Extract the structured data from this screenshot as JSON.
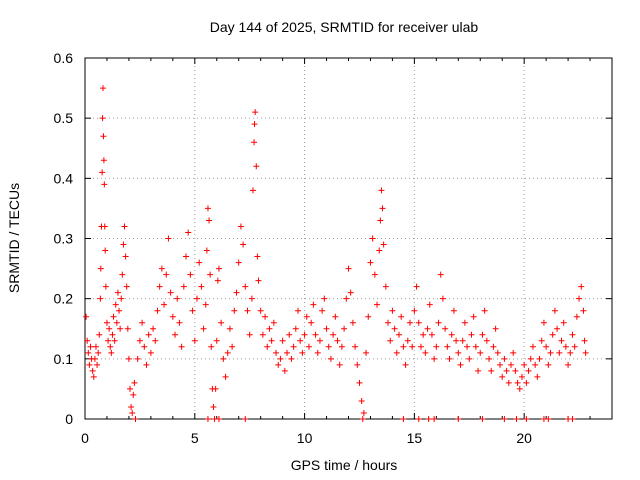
{
  "chart_data": {
    "type": "scatter",
    "title": "Day 144 of 2025, SRMTID for receiver ulab",
    "xlabel": "GPS time / hours",
    "ylabel": "SRMTID / TECUs",
    "xlim": [
      0,
      24
    ],
    "ylim": [
      0,
      0.6
    ],
    "x_ticks": [
      0,
      5,
      10,
      15,
      20
    ],
    "x_tick_labels": [
      "0",
      "5",
      "10",
      "15",
      "20"
    ],
    "y_ticks": [
      0,
      0.1,
      0.2,
      0.3,
      0.4,
      0.5,
      0.6
    ],
    "y_tick_labels": [
      "0",
      "0.1",
      "0.2",
      "0.3",
      "0.4",
      "0.5",
      "0.6"
    ],
    "grid": true,
    "marker": "+",
    "series": [
      {
        "name": "SRMTID",
        "color": "#ff0000",
        "points": [
          [
            0.05,
            0.17
          ],
          [
            0.1,
            0.13
          ],
          [
            0.15,
            0.11
          ],
          [
            0.2,
            0.09
          ],
          [
            0.25,
            0.12
          ],
          [
            0.3,
            0.1
          ],
          [
            0.35,
            0.08
          ],
          [
            0.4,
            0.07
          ],
          [
            0.45,
            0.1
          ],
          [
            0.5,
            0.12
          ],
          [
            0.55,
            0.09
          ],
          [
            0.6,
            0.11
          ],
          [
            0.65,
            0.14
          ],
          [
            0.7,
            0.2
          ],
          [
            0.72,
            0.25
          ],
          [
            0.75,
            0.32
          ],
          [
            0.78,
            0.41
          ],
          [
            0.8,
            0.5
          ],
          [
            0.82,
            0.55
          ],
          [
            0.84,
            0.47
          ],
          [
            0.86,
            0.43
          ],
          [
            0.88,
            0.39
          ],
          [
            0.9,
            0.32
          ],
          [
            0.92,
            0.28
          ],
          [
            0.95,
            0.22
          ],
          [
            1.0,
            0.16
          ],
          [
            1.05,
            0.13
          ],
          [
            1.1,
            0.15
          ],
          [
            1.15,
            0.12
          ],
          [
            1.2,
            0.11
          ],
          [
            1.25,
            0.14
          ],
          [
            1.3,
            0.17
          ],
          [
            1.35,
            0.13
          ],
          [
            1.4,
            0.19
          ],
          [
            1.45,
            0.16
          ],
          [
            1.5,
            0.21
          ],
          [
            1.55,
            0.18
          ],
          [
            1.6,
            0.15
          ],
          [
            1.65,
            0.2
          ],
          [
            1.7,
            0.24
          ],
          [
            1.75,
            0.29
          ],
          [
            1.8,
            0.32
          ],
          [
            1.85,
            0.27
          ],
          [
            1.9,
            0.22
          ],
          [
            1.95,
            0.15
          ],
          [
            2.0,
            0.1
          ],
          [
            2.05,
            0.05
          ],
          [
            2.1,
            0.02
          ],
          [
            2.15,
            0.01
          ],
          [
            2.2,
            0.04
          ],
          [
            2.25,
            0.06
          ],
          [
            2.3,
            0.0
          ],
          [
            2.4,
            0.1
          ],
          [
            2.5,
            0.13
          ],
          [
            2.6,
            0.16
          ],
          [
            2.7,
            0.12
          ],
          [
            2.8,
            0.09
          ],
          [
            2.9,
            0.14
          ],
          [
            3.0,
            0.11
          ],
          [
            3.1,
            0.15
          ],
          [
            3.2,
            0.13
          ],
          [
            3.3,
            0.18
          ],
          [
            3.4,
            0.22
          ],
          [
            3.5,
            0.25
          ],
          [
            3.6,
            0.19
          ],
          [
            3.7,
            0.24
          ],
          [
            3.8,
            0.3
          ],
          [
            3.9,
            0.21
          ],
          [
            4.0,
            0.17
          ],
          [
            4.1,
            0.14
          ],
          [
            4.2,
            0.2
          ],
          [
            4.3,
            0.16
          ],
          [
            4.4,
            0.12
          ],
          [
            4.5,
            0.22
          ],
          [
            4.6,
            0.27
          ],
          [
            4.7,
            0.31
          ],
          [
            4.8,
            0.24
          ],
          [
            4.9,
            0.18
          ],
          [
            5.0,
            0.13
          ],
          [
            5.1,
            0.2
          ],
          [
            5.2,
            0.26
          ],
          [
            5.3,
            0.22
          ],
          [
            5.4,
            0.15
          ],
          [
            5.5,
            0.19
          ],
          [
            5.55,
            0.28
          ],
          [
            5.6,
            0.35
          ],
          [
            5.65,
            0.33
          ],
          [
            5.7,
            0.24
          ],
          [
            5.75,
            0.12
          ],
          [
            5.8,
            0.05
          ],
          [
            5.85,
            0.02
          ],
          [
            5.9,
            0.0
          ],
          [
            5.95,
            0.05
          ],
          [
            6.0,
            0.13
          ],
          [
            6.05,
            0.23
          ],
          [
            6.1,
            0.25
          ],
          [
            6.2,
            0.16
          ],
          [
            6.3,
            0.1
          ],
          [
            6.4,
            0.07
          ],
          [
            6.5,
            0.11
          ],
          [
            6.6,
            0.15
          ],
          [
            6.7,
            0.12
          ],
          [
            6.8,
            0.18
          ],
          [
            6.9,
            0.21
          ],
          [
            7.0,
            0.26
          ],
          [
            7.1,
            0.32
          ],
          [
            7.2,
            0.29
          ],
          [
            7.3,
            0.22
          ],
          [
            7.4,
            0.18
          ],
          [
            7.5,
            0.14
          ],
          [
            7.6,
            0.2
          ],
          [
            7.65,
            0.38
          ],
          [
            7.7,
            0.46
          ],
          [
            7.72,
            0.49
          ],
          [
            7.75,
            0.51
          ],
          [
            7.8,
            0.42
          ],
          [
            7.85,
            0.27
          ],
          [
            7.9,
            0.23
          ],
          [
            8.0,
            0.18
          ],
          [
            8.1,
            0.14
          ],
          [
            8.2,
            0.17
          ],
          [
            8.3,
            0.12
          ],
          [
            8.4,
            0.15
          ],
          [
            8.5,
            0.13
          ],
          [
            8.6,
            0.16
          ],
          [
            8.7,
            0.11
          ],
          [
            8.8,
            0.09
          ],
          [
            8.9,
            0.1
          ],
          [
            9.0,
            0.13
          ],
          [
            9.1,
            0.08
          ],
          [
            9.2,
            0.11
          ],
          [
            9.3,
            0.14
          ],
          [
            9.4,
            0.1
          ],
          [
            9.5,
            0.12
          ],
          [
            9.6,
            0.15
          ],
          [
            9.7,
            0.18
          ],
          [
            9.8,
            0.13
          ],
          [
            9.9,
            0.11
          ],
          [
            10.0,
            0.14
          ],
          [
            10.1,
            0.17
          ],
          [
            10.2,
            0.12
          ],
          [
            10.3,
            0.16
          ],
          [
            10.4,
            0.19
          ],
          [
            10.5,
            0.14
          ],
          [
            10.6,
            0.11
          ],
          [
            10.7,
            0.13
          ],
          [
            10.8,
            0.18
          ],
          [
            10.9,
            0.2
          ],
          [
            11.0,
            0.15
          ],
          [
            11.1,
            0.12
          ],
          [
            11.2,
            0.1
          ],
          [
            11.3,
            0.14
          ],
          [
            11.4,
            0.17
          ],
          [
            11.5,
            0.13
          ],
          [
            11.6,
            0.09
          ],
          [
            11.7,
            0.12
          ],
          [
            11.8,
            0.15
          ],
          [
            11.9,
            0.2
          ],
          [
            12.0,
            0.25
          ],
          [
            12.1,
            0.21
          ],
          [
            12.2,
            0.16
          ],
          [
            12.3,
            0.12
          ],
          [
            12.4,
            0.09
          ],
          [
            12.5,
            0.06
          ],
          [
            12.6,
            0.03
          ],
          [
            12.7,
            0.01
          ],
          [
            12.8,
            0.11
          ],
          [
            12.9,
            0.17
          ],
          [
            13.0,
            0.26
          ],
          [
            13.1,
            0.3
          ],
          [
            13.2,
            0.24
          ],
          [
            13.3,
            0.19
          ],
          [
            13.4,
            0.28
          ],
          [
            13.45,
            0.33
          ],
          [
            13.5,
            0.38
          ],
          [
            13.55,
            0.35
          ],
          [
            13.6,
            0.29
          ],
          [
            13.7,
            0.22
          ],
          [
            13.8,
            0.16
          ],
          [
            13.9,
            0.13
          ],
          [
            14.0,
            0.18
          ],
          [
            14.1,
            0.15
          ],
          [
            14.2,
            0.11
          ],
          [
            14.3,
            0.14
          ],
          [
            14.4,
            0.17
          ],
          [
            14.5,
            0.12
          ],
          [
            14.6,
            0.09
          ],
          [
            14.7,
            0.13
          ],
          [
            14.8,
            0.16
          ],
          [
            14.9,
            0.12
          ],
          [
            15.0,
            0.18
          ],
          [
            15.1,
            0.22
          ],
          [
            15.2,
            0.16
          ],
          [
            15.3,
            0.12
          ],
          [
            15.4,
            0.14
          ],
          [
            15.5,
            0.11
          ],
          [
            15.6,
            0.15
          ],
          [
            15.7,
            0.19
          ],
          [
            15.8,
            0.14
          ],
          [
            15.9,
            0.1
          ],
          [
            16.0,
            0.12
          ],
          [
            16.1,
            0.16
          ],
          [
            16.2,
            0.24
          ],
          [
            16.3,
            0.2
          ],
          [
            16.4,
            0.15
          ],
          [
            16.5,
            0.12
          ],
          [
            16.6,
            0.1
          ],
          [
            16.7,
            0.14
          ],
          [
            16.8,
            0.18
          ],
          [
            16.9,
            0.13
          ],
          [
            17.0,
            0.11
          ],
          [
            17.1,
            0.09
          ],
          [
            17.2,
            0.13
          ],
          [
            17.3,
            0.16
          ],
          [
            17.4,
            0.12
          ],
          [
            17.5,
            0.1
          ],
          [
            17.6,
            0.14
          ],
          [
            17.7,
            0.17
          ],
          [
            17.8,
            0.12
          ],
          [
            17.9,
            0.08
          ],
          [
            18.0,
            0.11
          ],
          [
            18.1,
            0.14
          ],
          [
            18.2,
            0.18
          ],
          [
            18.3,
            0.13
          ],
          [
            18.4,
            0.1
          ],
          [
            18.5,
            0.08
          ],
          [
            18.6,
            0.12
          ],
          [
            18.7,
            0.15
          ],
          [
            18.8,
            0.11
          ],
          [
            18.9,
            0.09
          ],
          [
            19.0,
            0.07
          ],
          [
            19.1,
            0.1
          ],
          [
            19.2,
            0.08
          ],
          [
            19.3,
            0.06
          ],
          [
            19.4,
            0.09
          ],
          [
            19.5,
            0.11
          ],
          [
            19.6,
            0.08
          ],
          [
            19.7,
            0.06
          ],
          [
            19.8,
            0.05
          ],
          [
            19.9,
            0.07
          ],
          [
            20.0,
            0.09
          ],
          [
            20.1,
            0.06
          ],
          [
            20.2,
            0.08
          ],
          [
            20.3,
            0.1
          ],
          [
            20.4,
            0.12
          ],
          [
            20.5,
            0.09
          ],
          [
            20.6,
            0.07
          ],
          [
            20.7,
            0.1
          ],
          [
            20.8,
            0.13
          ],
          [
            20.9,
            0.16
          ],
          [
            21.0,
            0.12
          ],
          [
            21.1,
            0.09
          ],
          [
            21.2,
            0.11
          ],
          [
            21.3,
            0.14
          ],
          [
            21.4,
            0.18
          ],
          [
            21.5,
            0.15
          ],
          [
            21.6,
            0.11
          ],
          [
            21.7,
            0.13
          ],
          [
            21.8,
            0.16
          ],
          [
            21.9,
            0.12
          ],
          [
            22.0,
            0.09
          ],
          [
            22.1,
            0.11
          ],
          [
            22.2,
            0.14
          ],
          [
            22.3,
            0.12
          ],
          [
            22.4,
            0.17
          ],
          [
            22.5,
            0.2
          ],
          [
            22.6,
            0.22
          ],
          [
            22.7,
            0.18
          ],
          [
            22.75,
            0.13
          ],
          [
            22.8,
            0.11
          ],
          [
            2.3,
            0.0
          ],
          [
            5.6,
            0.0
          ],
          [
            6.1,
            0.0
          ],
          [
            7.3,
            0.0
          ],
          [
            12.65,
            0.0
          ],
          [
            14.5,
            0.0
          ],
          [
            15.2,
            0.0
          ],
          [
            15.65,
            0.0
          ],
          [
            15.9,
            0.0
          ],
          [
            17.0,
            0.0
          ],
          [
            18.1,
            0.0
          ],
          [
            19.1,
            0.0
          ],
          [
            19.65,
            0.0
          ],
          [
            20.1,
            0.0
          ],
          [
            20.9,
            0.0
          ],
          [
            21.1,
            0.0
          ],
          [
            22.0,
            0.0
          ],
          [
            22.2,
            0.0
          ]
        ]
      }
    ]
  }
}
